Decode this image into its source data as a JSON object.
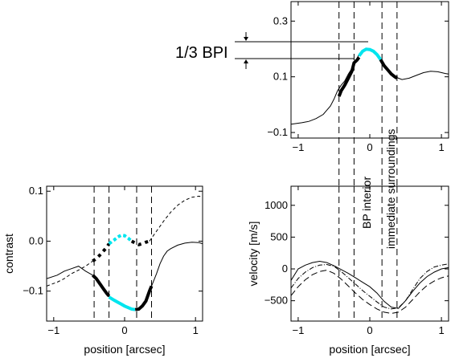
{
  "chart_data": [
    {
      "id": "top-right",
      "type": "line",
      "xlim": [
        -1.1,
        1.1
      ],
      "ylim": [
        -0.12,
        0.37
      ],
      "xticks": [
        -1,
        0,
        1
      ],
      "xtick_labels": [
        "−1",
        "0",
        "1"
      ],
      "yticks": [
        -0.1,
        0.1,
        0.3
      ],
      "ytick_labels": [
        "−0.1",
        "0.1",
        "0.3"
      ],
      "xlabel": "",
      "ylabel": "",
      "vlines": [
        -0.43,
        -0.22,
        0.17,
        0.38
      ],
      "hlines": [
        0.192,
        0.155
      ],
      "hline_label": "1/3 BPI",
      "vertical_annotations": [
        "BP interior",
        "immediate surroundings"
      ],
      "series": [
        {
          "style": "thin",
          "points": [
            [
              -1.1,
              -0.07
            ],
            [
              -0.95,
              -0.065
            ],
            [
              -0.85,
              -0.06
            ],
            [
              -0.75,
              -0.05
            ],
            [
              -0.65,
              -0.035
            ],
            [
              -0.6,
              -0.02
            ],
            [
              -0.55,
              -0.005
            ],
            [
              -0.5,
              0.02
            ],
            [
              -0.45,
              0.05
            ],
            [
              -0.4,
              0.07
            ],
            [
              -0.35,
              0.085
            ],
            [
              -0.3,
              0.11
            ],
            [
              -0.25,
              0.13
            ],
            [
              -0.22,
              0.15
            ],
            [
              -0.18,
              0.165
            ],
            [
              -0.15,
              0.18
            ],
            [
              -0.1,
              0.192
            ],
            [
              -0.05,
              0.198
            ],
            [
              0,
              0.197
            ],
            [
              0.05,
              0.19
            ],
            [
              0.1,
              0.18
            ],
            [
              0.15,
              0.16
            ],
            [
              0.2,
              0.145
            ],
            [
              0.25,
              0.13
            ],
            [
              0.3,
              0.115
            ],
            [
              0.35,
              0.1
            ],
            [
              0.4,
              0.095
            ],
            [
              0.45,
              0.09
            ],
            [
              0.55,
              0.095
            ],
            [
              0.65,
              0.105
            ],
            [
              0.75,
              0.115
            ],
            [
              0.85,
              0.12
            ],
            [
              0.95,
              0.118
            ],
            [
              1.05,
              0.112
            ],
            [
              1.1,
              0.11
            ]
          ]
        },
        {
          "style": "thick-black",
          "points": [
            [
              -0.43,
              0.03
            ],
            [
              -0.4,
              0.05
            ],
            [
              -0.35,
              0.07
            ],
            [
              -0.3,
              0.095
            ],
            [
              -0.25,
              0.12
            ],
            [
              -0.22,
              0.15
            ],
            [
              -0.18,
              0.16
            ],
            [
              -0.15,
              0.17
            ]
          ]
        },
        {
          "style": "thick-cyan",
          "points": [
            [
              -0.15,
              0.175
            ],
            [
              -0.1,
              0.192
            ],
            [
              -0.05,
              0.199
            ],
            [
              0,
              0.198
            ],
            [
              0.05,
              0.192
            ],
            [
              0.1,
              0.18
            ],
            [
              0.15,
              0.162
            ]
          ]
        },
        {
          "style": "thick-black",
          "points": [
            [
              0.15,
              0.162
            ],
            [
              0.2,
              0.14
            ],
            [
              0.25,
              0.125
            ],
            [
              0.3,
              0.11
            ],
            [
              0.35,
              0.1
            ],
            [
              0.38,
              0.095
            ]
          ]
        }
      ]
    },
    {
      "id": "bottom-left",
      "type": "line",
      "xlim": [
        -1.1,
        1.1
      ],
      "ylim": [
        -0.16,
        0.11
      ],
      "xticks": [
        -1,
        0,
        1
      ],
      "xtick_labels": [
        "−1",
        "0",
        "1"
      ],
      "yticks": [
        -0.1,
        0.0,
        0.1
      ],
      "ytick_labels": [
        "−0.1",
        "0.0",
        "0.1"
      ],
      "xlabel": "position [arcsec]",
      "ylabel": "contrast",
      "vlines": [
        -0.43,
        -0.22,
        0.17,
        0.38
      ],
      "series": [
        {
          "style": "thin",
          "points": [
            [
              -1.1,
              -0.075
            ],
            [
              -0.95,
              -0.068
            ],
            [
              -0.85,
              -0.06
            ],
            [
              -0.75,
              -0.055
            ],
            [
              -0.65,
              -0.05
            ],
            [
              -0.55,
              -0.06
            ],
            [
              -0.45,
              -0.068
            ]
          ]
        },
        {
          "style": "thick-black",
          "points": [
            [
              -0.45,
              -0.068
            ],
            [
              -0.4,
              -0.075
            ],
            [
              -0.35,
              -0.085
            ],
            [
              -0.3,
              -0.095
            ],
            [
              -0.25,
              -0.105
            ],
            [
              -0.22,
              -0.11
            ]
          ]
        },
        {
          "style": "thick-cyan",
          "points": [
            [
              -0.22,
              -0.112
            ],
            [
              -0.15,
              -0.118
            ],
            [
              -0.1,
              -0.122
            ],
            [
              -0.05,
              -0.126
            ],
            [
              0,
              -0.13
            ],
            [
              0.05,
              -0.133
            ],
            [
              0.1,
              -0.136
            ],
            [
              0.15,
              -0.137
            ]
          ]
        },
        {
          "style": "thick-black",
          "points": [
            [
              0.15,
              -0.137
            ],
            [
              0.2,
              -0.136
            ],
            [
              0.25,
              -0.13
            ],
            [
              0.3,
              -0.12
            ],
            [
              0.35,
              -0.1
            ],
            [
              0.38,
              -0.09
            ]
          ]
        },
        {
          "style": "thin",
          "points": [
            [
              0.38,
              -0.09
            ],
            [
              0.45,
              -0.065
            ],
            [
              0.5,
              -0.045
            ],
            [
              0.55,
              -0.03
            ],
            [
              0.6,
              -0.02
            ],
            [
              0.65,
              -0.015
            ],
            [
              0.75,
              -0.008
            ],
            [
              0.85,
              -0.004
            ],
            [
              0.95,
              -0.002
            ],
            [
              1.05,
              -0.003
            ],
            [
              1.1,
              -0.005
            ]
          ]
        },
        {
          "style": "dashed-thin",
          "points": [
            [
              -1.1,
              -0.09
            ],
            [
              -0.95,
              -0.082
            ],
            [
              -0.85,
              -0.075
            ],
            [
              -0.75,
              -0.065
            ],
            [
              -0.65,
              -0.058
            ],
            [
              -0.55,
              -0.05
            ],
            [
              -0.45,
              -0.04
            ]
          ]
        },
        {
          "style": "dashed-black",
          "points": [
            [
              -0.45,
              -0.04
            ],
            [
              -0.4,
              -0.035
            ],
            [
              -0.35,
              -0.028
            ],
            [
              -0.3,
              -0.02
            ],
            [
              -0.25,
              -0.012
            ],
            [
              -0.22,
              -0.005
            ]
          ]
        },
        {
          "style": "dashed-cyan",
          "points": [
            [
              -0.22,
              -0.005
            ],
            [
              -0.15,
              0.002
            ],
            [
              -0.1,
              0.008
            ],
            [
              -0.05,
              0.012
            ],
            [
              0,
              0.011
            ],
            [
              0.05,
              0.006
            ],
            [
              0.1,
              0.0
            ]
          ]
        },
        {
          "style": "dashed-black",
          "points": [
            [
              0.1,
              0.0
            ],
            [
              0.15,
              -0.004
            ],
            [
              0.2,
              -0.007
            ],
            [
              0.25,
              -0.005
            ],
            [
              0.3,
              -0.002
            ],
            [
              0.35,
              0.0
            ]
          ]
        },
        {
          "style": "dashed-thin",
          "points": [
            [
              0.35,
              0.0
            ],
            [
              0.45,
              0.02
            ],
            [
              0.55,
              0.04
            ],
            [
              0.65,
              0.058
            ],
            [
              0.75,
              0.072
            ],
            [
              0.85,
              0.082
            ],
            [
              0.95,
              0.088
            ],
            [
              1.05,
              0.09
            ],
            [
              1.1,
              0.088
            ]
          ]
        }
      ]
    },
    {
      "id": "bottom-right",
      "type": "line",
      "xlim": [
        -1.1,
        1.1
      ],
      "ylim": [
        -820,
        1300
      ],
      "xticks": [
        -1,
        0,
        1
      ],
      "xtick_labels": [
        "−1",
        "0",
        "1"
      ],
      "yticks": [
        -500,
        0,
        500,
        1000
      ],
      "ytick_labels": [
        "−500",
        "0",
        "500",
        "1000"
      ],
      "xlabel": "position [arcsec]",
      "ylabel": "velocity [m/s]",
      "vlines": [
        -0.43,
        -0.22,
        0.17,
        0.38
      ],
      "series": [
        {
          "style": "solid",
          "points": [
            [
              -1.1,
              -180
            ],
            [
              -1.0,
              0
            ],
            [
              -0.9,
              60
            ],
            [
              -0.8,
              100
            ],
            [
              -0.7,
              120
            ],
            [
              -0.6,
              100
            ],
            [
              -0.5,
              50
            ],
            [
              -0.4,
              -10
            ],
            [
              -0.3,
              -70
            ],
            [
              -0.2,
              -140
            ],
            [
              -0.1,
              -210
            ],
            [
              0,
              -280
            ],
            [
              0.1,
              -380
            ],
            [
              0.2,
              -510
            ],
            [
              0.3,
              -600
            ],
            [
              0.4,
              -620
            ],
            [
              0.5,
              -500
            ],
            [
              0.6,
              -350
            ],
            [
              0.7,
              -220
            ],
            [
              0.8,
              -120
            ],
            [
              0.9,
              -50
            ],
            [
              1.0,
              0
            ],
            [
              1.1,
              20
            ]
          ]
        },
        {
          "style": "dash-dot",
          "points": [
            [
              -1.1,
              -300
            ],
            [
              -1.0,
              -150
            ],
            [
              -0.9,
              -50
            ],
            [
              -0.8,
              20
            ],
            [
              -0.7,
              60
            ],
            [
              -0.6,
              70
            ],
            [
              -0.5,
              40
            ],
            [
              -0.4,
              -40
            ],
            [
              -0.3,
              -140
            ],
            [
              -0.2,
              -240
            ],
            [
              -0.1,
              -340
            ],
            [
              0,
              -430
            ],
            [
              0.1,
              -520
            ],
            [
              0.2,
              -600
            ],
            [
              0.3,
              -630
            ],
            [
              0.4,
              -610
            ],
            [
              0.5,
              -500
            ],
            [
              0.6,
              -320
            ],
            [
              0.7,
              -150
            ],
            [
              0.8,
              -40
            ],
            [
              0.9,
              30
            ],
            [
              1.0,
              60
            ],
            [
              1.1,
              80
            ]
          ]
        },
        {
          "style": "dashed",
          "points": [
            [
              -1.1,
              -420
            ],
            [
              -1.0,
              -280
            ],
            [
              -0.9,
              -170
            ],
            [
              -0.8,
              -90
            ],
            [
              -0.7,
              -40
            ],
            [
              -0.6,
              -20
            ],
            [
              -0.5,
              -70
            ],
            [
              -0.4,
              -160
            ],
            [
              -0.3,
              -270
            ],
            [
              -0.2,
              -380
            ],
            [
              -0.1,
              -480
            ],
            [
              0,
              -560
            ],
            [
              0.1,
              -630
            ],
            [
              0.2,
              -680
            ],
            [
              0.3,
              -700
            ],
            [
              0.4,
              -680
            ],
            [
              0.5,
              -600
            ],
            [
              0.6,
              -480
            ],
            [
              0.7,
              -360
            ],
            [
              0.8,
              -260
            ],
            [
              0.9,
              -190
            ],
            [
              1.0,
              -140
            ],
            [
              1.1,
              -110
            ]
          ]
        }
      ]
    }
  ]
}
